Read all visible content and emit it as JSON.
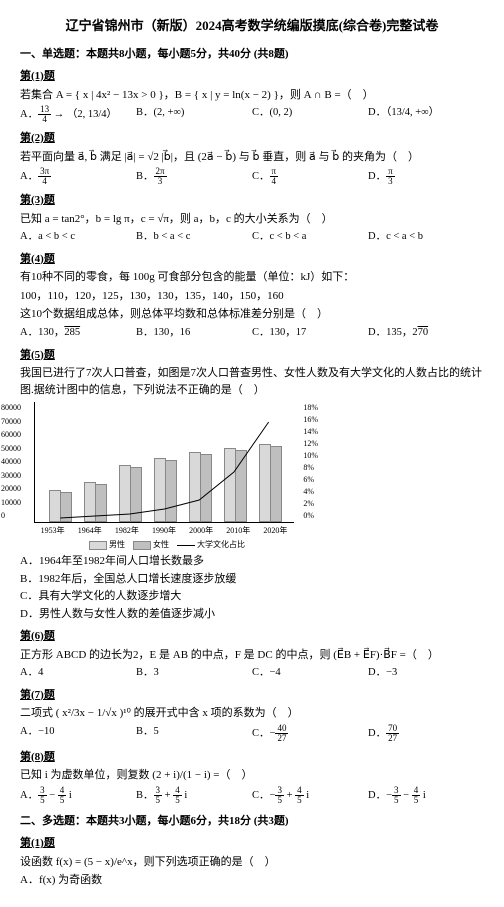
{
  "title": "辽宁省锦州市（新版）2024高考数学统编版摸底(综合卷)完整试卷",
  "section1": "一、单选题：本题共8小题，每小题5分，共40分 (共8题)",
  "section2": "二、多选题：本题共3小题，每小题6分，共18分 (共3题)",
  "q1": {
    "label": "第(1)题",
    "text": "若集合 A = { x | 4x² − 13x > 0 }，B = { x | y = ln(x − 2) }，则 A ∩ B =（　）",
    "A": "A．",
    "Aval": "（2, 13/4）",
    "B": "B．",
    "Bval": "(2, +∞)",
    "C": "C．",
    "Cval": "(0, 2)",
    "D": "D．",
    "Dval": "（13/4, +∞）"
  },
  "q2": {
    "label": "第(2)题",
    "text": "若平面向量 a⃗, b⃗ 满足 |a⃗| = √2 |b⃗|，且 (2a⃗ − b⃗) 与 b⃗ 垂直，则 a⃗ 与 b⃗ 的夹角为（　）",
    "A": "A．",
    "Aval": "3π/4",
    "B": "B．",
    "Bval": "2π/3",
    "C": "C．",
    "Cval": "π/4",
    "D": "D．",
    "Dval": "π/3"
  },
  "q3": {
    "label": "第(3)题",
    "text": "已知 a = tan2°，b = lg π，c = √π，则 a，b，c 的大小关系为（　）",
    "A": "A．a < b < c",
    "B": "B．b < a < c",
    "C": "C．c < b < a",
    "D": "D．c < a < b"
  },
  "q4": {
    "label": "第(4)题",
    "text1": "有10种不同的零食，每 100g 可食部分包含的能量（单位：kJ）如下：",
    "text2": "100，110，120，125，130，130，135，140，150，160",
    "text3": "这10个数据组成总体，则总体平均数和总体标准差分别是（　）",
    "A": "A．",
    "Aval": "130，√285",
    "B": "B．130，16",
    "C": "C．130，17",
    "D": "D．",
    "Dval": "135，2√70"
  },
  "q5": {
    "label": "第(5)题",
    "text": "我国已进行了7次人口普查，如图是7次人口普查男性、女性人数及有大学文化的人数占比的统计图.据统计图中的信息，下列说法不正确的是（　）",
    "A": "A．1964年至1982年间人口增长数最多",
    "B": "B．1982年后，全国总人口增长速度逐步放缓",
    "C": "C．具有大学文化的人数逐步增大",
    "D": "D．男性人数与女性人数的差值逐步减小"
  },
  "q6": {
    "label": "第(6)题",
    "text": "正方形 ABCD 的边长为2，E 是 AB 的中点，F 是 DC 的中点，则 (E⃗B + E⃗F)·B⃗F =（　）",
    "A": "A．4",
    "B": "B．3",
    "C": "C．−4",
    "D": "D．−3"
  },
  "q7": {
    "label": "第(7)题",
    "text": "二项式 ( x²/3x − 1/√x )¹⁰ 的展开式中含 x 项的系数为（　）",
    "A": "A．−10",
    "B": "B．5",
    "C": "C．",
    "Cval": "−40/27",
    "D": "D．",
    "Dval": "70/27"
  },
  "q8": {
    "label": "第(8)题",
    "text": "已知 i 为虚数单位，则复数 (2 + i)/(1 − i) =（　）",
    "A": "A．",
    "Aval": "3/5 − 4/5 i",
    "B": "B．",
    "Bval": "3/5 + 4/5 i",
    "C": "C．",
    "Cval": "−3/5 + 4/5 i",
    "D": "D．",
    "Dval": "−3/5 − 4/5 i"
  },
  "m1": {
    "label": "第(1)题",
    "text": "设函数 f(x) = (5 − x)/e^x，则下列选项正确的是（　）",
    "A": "A．f(x) 为奇函数"
  },
  "chart": {
    "title": "历次人口普查",
    "years": [
      "1953年",
      "1964年",
      "1982年",
      "1990年",
      "2000年",
      "2010年",
      "2020年"
    ],
    "left_ticks": [
      "80000",
      "70000",
      "60000",
      "50000",
      "40000",
      "30000",
      "20000",
      "10000",
      "0"
    ],
    "right_ticks": [
      "18%",
      "16%",
      "14%",
      "12%",
      "10%",
      "8%",
      "6%",
      "4%",
      "2%",
      "0%"
    ],
    "male_h": [
      30,
      38,
      55,
      62,
      68,
      72,
      76
    ],
    "female_h": [
      28,
      36,
      53,
      60,
      66,
      70,
      74
    ],
    "line_y": [
      116,
      114,
      112,
      107,
      98,
      70,
      20
    ],
    "legend_m": "男性",
    "legend_f": "女性",
    "legend_line": "大学文化占比",
    "bar_m_color": "#d9d9d9",
    "bar_f_color": "#bfbfbf"
  }
}
